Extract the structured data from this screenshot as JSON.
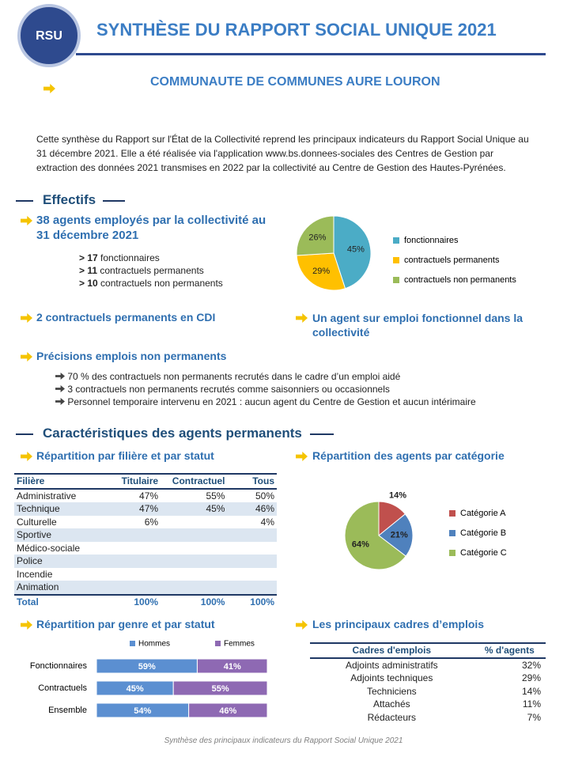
{
  "header": {
    "badge": "RSU",
    "title": "SYNTHÈSE DU RAPPORT SOCIAL UNIQUE 2021",
    "subtitle": "COMMUNAUTE DE COMMUNES AURE LOURON"
  },
  "intro": "Cette synthèse du Rapport sur l'État de la Collectivité reprend les principaux indicateurs du Rapport Social Unique au 31 décembre 2021. Elle a été réalisée via l'application www.bs.donnees-sociales des Centres de Gestion par extraction des données 2021 transmises en 2022 par la collectivité au Centre de Gestion des Hautes-Pyrénées.",
  "effectifs": {
    "heading": "Effectifs",
    "headline": "38 agents employés par la collectivité au 31 décembre 2021",
    "breakdown": [
      {
        "count": "> 17",
        "label": "fonctionnaires"
      },
      {
        "count": "> 11",
        "label": "contractuels permanents"
      },
      {
        "count": "> 10",
        "label": "contractuels non permanents"
      }
    ],
    "cdi": "2 contractuels permanents en CDI",
    "fonctionnel": "Un agent sur emploi fonctionnel dans la collectivité",
    "precisions": {
      "title": "Précisions emplois non permanents",
      "items": [
        "70 % des contractuels non permanents recrutés dans le cadre d’un emploi aidé",
        "3 contractuels non permanents recrutés comme saisonniers ou occasionnels",
        "Personnel temporaire intervenu en 2021 : aucun agent du Centre de Gestion et aucun intérimaire"
      ]
    }
  },
  "caracteristiques": {
    "heading": "Caractéristiques des agents permanents",
    "filiere": {
      "title": "Répartition par filière et par statut",
      "table": {
        "columns": [
          "Filière",
          "Titulaire",
          "Contractuel",
          "Tous"
        ],
        "rows": [
          [
            "Administrative",
            "47%",
            "55%",
            "50%"
          ],
          [
            "Technique",
            "47%",
            "45%",
            "46%"
          ],
          [
            "Culturelle",
            "6%",
            null,
            "4%"
          ],
          [
            "Sportive",
            null,
            null,
            null
          ],
          [
            "Médico-sociale",
            null,
            null,
            null
          ],
          [
            "Police",
            null,
            null,
            null
          ],
          [
            "Incendie",
            null,
            null,
            null
          ],
          [
            "Animation",
            null,
            null,
            null
          ],
          [
            "Total",
            "100%",
            "100%",
            "100%"
          ]
        ]
      }
    },
    "categorie": {
      "title": "Répartition des agents par catégorie"
    },
    "genre": {
      "title": "Répartition par genre et par statut"
    },
    "cadres": {
      "title": "Les principaux cadres d’emplois",
      "table": {
        "columns": [
          "Cadres d'emplois",
          "% d'agents"
        ],
        "rows": [
          [
            "Adjoints administratifs",
            "32%"
          ],
          [
            "Adjoints techniques",
            "29%"
          ],
          [
            "Techniciens",
            "14%"
          ],
          [
            "Attachés",
            "11%"
          ],
          [
            "Rédacteurs",
            "7%"
          ]
        ]
      }
    }
  },
  "footer": "Synthèse des principaux indicateurs du Rapport Social Unique 2021",
  "chart_data": [
    {
      "type": "pie",
      "categories": [
        "fonctionnaires",
        "contractuels permanents",
        "contractuels non permanents"
      ],
      "values": [
        45,
        29,
        26
      ],
      "value_labels": [
        "45%",
        "29%",
        "26%"
      ],
      "colors": [
        "#4bacc6",
        "#ffc000",
        "#9bbb59"
      ],
      "legend": "right"
    },
    {
      "type": "pie",
      "categories": [
        "Catégorie A",
        "Catégorie B",
        "Catégorie C"
      ],
      "values": [
        14,
        21,
        64
      ],
      "value_labels": [
        "14%",
        "21%",
        "64%"
      ],
      "colors": [
        "#c0504d",
        "#4f81bd",
        "#9bbb59"
      ],
      "legend": "right"
    },
    {
      "type": "bar",
      "orientation": "horizontal",
      "stacked": true,
      "categories": [
        "Fonctionnaires",
        "Contractuels",
        "Ensemble"
      ],
      "series": [
        {
          "name": "Hommes",
          "color": "#5b8fd1",
          "values": [
            59,
            45,
            54
          ],
          "value_labels": [
            "59%",
            "45%",
            "54%"
          ]
        },
        {
          "name": "Femmes",
          "color": "#8e69b3",
          "values": [
            41,
            55,
            46
          ],
          "value_labels": [
            "41%",
            "55%",
            "46%"
          ]
        }
      ],
      "xlim": [
        0,
        100
      ],
      "legend": "top"
    }
  ]
}
